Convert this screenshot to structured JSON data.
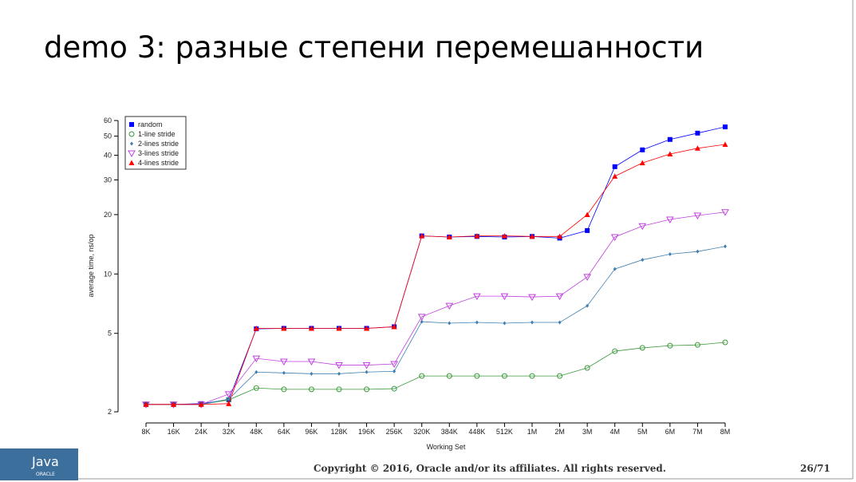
{
  "slide": {
    "title": "demo 3: разные степени перемешанности",
    "footer": "Copyright © 2016, Oracle and/or its affiliates. All rights reserved.",
    "page": "26/71",
    "logo_text": "Java",
    "logo_subtext": "ORACLE"
  },
  "chart_data": {
    "type": "line",
    "x_label": "Working Set",
    "y_label": "average time, ns/op",
    "categories": [
      "8K",
      "16K",
      "24K",
      "32K",
      "48K",
      "64K",
      "96K",
      "128K",
      "196K",
      "256K",
      "320K",
      "384K",
      "448K",
      "512K",
      "1M",
      "2M",
      "3M",
      "4M",
      "5M",
      "6M",
      "7M",
      "8M"
    ],
    "log_y": true,
    "ylim": [
      1.84,
      66.5
    ],
    "yticks": [
      2,
      5,
      10,
      20,
      30,
      40,
      50,
      60
    ],
    "legend": "top-left",
    "series": [
      {
        "name": "random",
        "color": "#0000ff",
        "marker": "square",
        "values": [
          2.18,
          2.18,
          2.2,
          2.3,
          5.27,
          5.3,
          5.3,
          5.3,
          5.3,
          5.4,
          15.6,
          15.4,
          15.5,
          15.4,
          15.5,
          15.2,
          16.6,
          35.0,
          42.6,
          48.1,
          51.8,
          55.7
        ]
      },
      {
        "name": "1-line stride",
        "color": "#3a9a3a",
        "marker": "circle",
        "values": [
          2.18,
          2.18,
          2.18,
          2.3,
          2.64,
          2.6,
          2.6,
          2.6,
          2.6,
          2.62,
          3.04,
          3.04,
          3.04,
          3.04,
          3.04,
          3.04,
          3.34,
          4.06,
          4.22,
          4.33,
          4.37,
          4.5
        ]
      },
      {
        "name": "2-lines stride",
        "color": "#3f7fb0",
        "marker": "diamond",
        "values": [
          2.18,
          2.18,
          2.18,
          2.32,
          3.18,
          3.15,
          3.12,
          3.12,
          3.18,
          3.21,
          5.73,
          5.63,
          5.68,
          5.63,
          5.68,
          5.68,
          6.9,
          10.6,
          11.8,
          12.6,
          13.0,
          13.8
        ]
      },
      {
        "name": "3-lines stride",
        "color": "#c040e0",
        "marker": "triangle-down",
        "values": [
          2.18,
          2.18,
          2.18,
          2.46,
          3.73,
          3.6,
          3.6,
          3.45,
          3.45,
          3.5,
          6.07,
          6.9,
          7.72,
          7.72,
          7.65,
          7.72,
          9.67,
          15.4,
          17.5,
          18.9,
          19.8,
          20.6
        ]
      },
      {
        "name": "4-lines stride",
        "color": "#ff0000",
        "marker": "triangle-up",
        "values": [
          2.18,
          2.18,
          2.18,
          2.2,
          5.3,
          5.3,
          5.3,
          5.3,
          5.3,
          5.4,
          15.6,
          15.4,
          15.6,
          15.6,
          15.5,
          15.5,
          20.0,
          31.3,
          36.6,
          40.6,
          43.4,
          45.4
        ]
      }
    ]
  }
}
